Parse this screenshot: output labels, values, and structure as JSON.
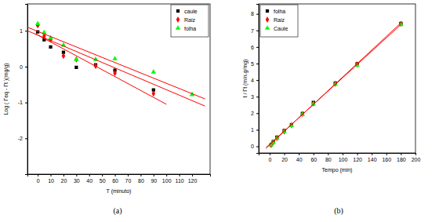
{
  "chart_data": [
    {
      "type": "scatter",
      "title": "(a)",
      "x_label": "T (minuto)",
      "y_label": "Log ( Γeq - Γt )(mg/g)",
      "xlim": [
        -8,
        134
      ],
      "ylim": [
        -3,
        1.75
      ],
      "xticks": [
        0,
        10,
        20,
        30,
        40,
        50,
        60,
        70,
        80,
        90,
        100,
        110,
        120
      ],
      "yticks": [
        -2,
        -1,
        0,
        1
      ],
      "legend": "upper right",
      "series": [
        {
          "name": "caule",
          "color": "#000000",
          "marker": "square",
          "x": [
            0,
            5,
            10,
            20,
            30,
            45,
            60,
            90
          ],
          "values": [
            0.97,
            0.75,
            0.55,
            0.4,
            -0.02,
            0.05,
            -0.1,
            -0.65
          ]
        },
        {
          "name": "Raiz",
          "color": "#ff0000",
          "marker": "diamond",
          "x": [
            0,
            5,
            10,
            20,
            30,
            45,
            60,
            90
          ],
          "values": [
            1.15,
            0.85,
            0.75,
            0.3,
            0.2,
            0.02,
            -0.18,
            -0.75
          ]
        },
        {
          "name": "folha",
          "color": "#00ff00",
          "marker": "triangle",
          "x": [
            0,
            5,
            10,
            20,
            30,
            45,
            60,
            90,
            120
          ],
          "values": [
            1.2,
            0.95,
            0.8,
            0.6,
            0.2,
            0.2,
            0.22,
            -0.15,
            -0.78
          ]
        },
        {
          "type": "line",
          "color": "#ff0000",
          "x": [
            -8,
            130
          ],
          "values": [
            1.1,
            -0.9
          ]
        },
        {
          "type": "line",
          "color": "#ff0000",
          "x": [
            -8,
            130
          ],
          "values": [
            1.0,
            -1.1
          ]
        },
        {
          "type": "line",
          "color": "#ff0000",
          "x": [
            -2,
            100
          ],
          "values": [
            0.92,
            -1.05
          ]
        }
      ]
    },
    {
      "type": "scatter",
      "title": "(b)",
      "x_label": "Tempo (min)",
      "y_label": "t / Γt (min.g/mg)",
      "xlim": [
        -15,
        200
      ],
      "ylim": [
        -0.4,
        8.6
      ],
      "xticks": [
        0,
        20,
        40,
        60,
        80,
        100,
        120,
        140,
        160,
        180,
        200
      ],
      "yticks": [
        0,
        1,
        2,
        3,
        4,
        5,
        6,
        7,
        8
      ],
      "legend": "upper left",
      "series": [
        {
          "name": "folha",
          "color": "#000000",
          "marker": "square",
          "x": [
            2,
            5,
            10,
            20,
            30,
            45,
            60,
            90,
            120,
            180
          ],
          "values": [
            0.1,
            0.28,
            0.55,
            0.95,
            1.3,
            1.98,
            2.65,
            3.82,
            4.98,
            7.42
          ]
        },
        {
          "name": "Raiz",
          "color": "#ff0000",
          "marker": "diamond",
          "x": [
            2,
            5,
            10,
            20,
            30,
            45,
            60,
            90,
            120,
            180
          ],
          "values": [
            0.08,
            0.25,
            0.5,
            0.9,
            1.28,
            1.95,
            2.58,
            3.78,
            4.95,
            7.4
          ]
        },
        {
          "name": "Caule",
          "color": "#00ff00",
          "marker": "triangle",
          "x": [
            2,
            5,
            10,
            20,
            30,
            45,
            60,
            90,
            120,
            180
          ],
          "values": [
            0.09,
            0.23,
            0.48,
            0.88,
            1.25,
            1.92,
            2.55,
            3.75,
            4.9,
            7.35
          ]
        },
        {
          "type": "line",
          "color": "#ff0000",
          "x": [
            -5,
            180
          ],
          "values": [
            -0.12,
            7.45
          ]
        },
        {
          "type": "line",
          "color": "#ff0000",
          "x": [
            -5,
            180
          ],
          "values": [
            -0.08,
            7.35
          ]
        }
      ]
    }
  ]
}
